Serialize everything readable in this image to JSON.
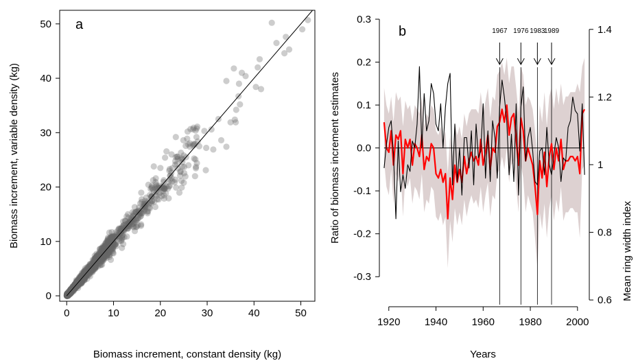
{
  "chart_data": [
    {
      "type": "scatter",
      "panel_label": "a",
      "xlabel": "Biomass increment, constant density (kg)",
      "ylabel": "Biomass increment, variable density (kg)",
      "xlim": [
        -1.5,
        53
      ],
      "ylim": [
        -1,
        52.5
      ],
      "x_ticks": [
        0,
        10,
        20,
        30,
        40,
        50
      ],
      "y_ticks": [
        0,
        10,
        20,
        30,
        40,
        50
      ],
      "x_tick_labels": [
        "0",
        "10",
        "20",
        "30",
        "40",
        "50"
      ],
      "y_tick_labels": [
        "0",
        "10",
        "20",
        "30",
        "40",
        "50"
      ],
      "reference_line": "1:1",
      "point_color": "#666666",
      "points_note": "approx. 1800 semi-transparent points scattered along the 1:1 line; dense 0-10 kg, sparse up to ~52 kg",
      "outlier_points": [
        [
          43.8,
          50.2
        ],
        [
          51.5,
          50.7
        ],
        [
          50.3,
          49.0
        ],
        [
          46.8,
          47.6
        ],
        [
          47.5,
          45.3
        ],
        [
          46.5,
          44.6
        ],
        [
          44.8,
          46.5
        ],
        [
          41.2,
          43.5
        ],
        [
          40.8,
          42.0
        ],
        [
          41.5,
          38.0
        ],
        [
          40.4,
          38.4
        ],
        [
          38.2,
          40.4
        ],
        [
          37.4,
          41.0
        ],
        [
          36.8,
          39.0
        ],
        [
          35.7,
          41.8
        ],
        [
          34.1,
          39.5
        ],
        [
          36.7,
          36.7
        ],
        [
          37.0,
          35.2
        ],
        [
          36.2,
          34.2
        ],
        [
          35.9,
          32.4
        ],
        [
          35.0,
          31.9
        ],
        [
          36.1,
          31.9
        ],
        [
          34.1,
          27.4
        ],
        [
          29.4,
          30.3
        ],
        [
          28.3,
          27.5
        ],
        [
          29.8,
          27.2
        ],
        [
          31.3,
          26.9
        ],
        [
          33.0,
          28.6
        ],
        [
          32.4,
          32.5
        ],
        [
          30.9,
          30.6
        ],
        [
          29.7,
          23.1
        ],
        [
          26.3,
          27.4
        ],
        [
          27.0,
          27.6
        ],
        [
          27.8,
          24.4
        ],
        [
          25.5,
          25.5
        ],
        [
          27.4,
          22.0
        ],
        [
          26.0,
          24.0
        ],
        [
          24.4,
          26.3
        ],
        [
          23.3,
          29.2
        ],
        [
          22.0,
          23.3
        ],
        [
          24.3,
          22.9
        ],
        [
          25.0,
          20.8
        ],
        [
          22.4,
          26.0
        ],
        [
          21.0,
          25.4
        ],
        [
          20.0,
          23.5
        ],
        [
          18.6,
          23.8
        ],
        [
          19.0,
          20.9
        ]
      ]
    },
    {
      "type": "line",
      "panel_label": "b",
      "xlabel": "Years",
      "ylabel": "Ratio of biomass increment estimates",
      "ylabel_right": "Mean ring width index",
      "xlim": [
        1916,
        2005
      ],
      "ylim": [
        -0.37,
        0.3
      ],
      "y2lim": [
        0.58,
        1.43
      ],
      "x_ticks": [
        1920,
        1940,
        1960,
        1980,
        2000
      ],
      "x_tick_labels": [
        "1920",
        "1940",
        "1960",
        "1980",
        "2000"
      ],
      "y_ticks": [
        0.3,
        0.2,
        0.1,
        0.0,
        -0.1,
        -0.2,
        -0.3
      ],
      "y_tick_labels": [
        "0.3",
        "0.2",
        "0.1",
        "0.0",
        "-0.1",
        "-0.2",
        "-0.3"
      ],
      "y2_ticks": [
        1.4,
        1.2,
        1.0,
        0.8,
        0.6
      ],
      "y2_tick_labels": [
        "1.4",
        "1.2",
        "1",
        "0.8",
        "0.6"
      ],
      "zero_line": 0,
      "events": [
        {
          "year": 1967,
          "label": "1967"
        },
        {
          "year": 1976,
          "label": "1976"
        },
        {
          "year": 1983,
          "label": "1983"
        },
        {
          "year": 1989,
          "label": "1989"
        }
      ],
      "colors": {
        "ratio": "#ff0000",
        "band": "#ddd1d1",
        "ring_width": "#000000"
      },
      "x": [
        1918,
        1919,
        1920,
        1921,
        1922,
        1923,
        1924,
        1925,
        1926,
        1927,
        1928,
        1929,
        1930,
        1931,
        1932,
        1933,
        1934,
        1935,
        1936,
        1937,
        1938,
        1939,
        1940,
        1941,
        1942,
        1943,
        1944,
        1945,
        1946,
        1947,
        1948,
        1949,
        1950,
        1951,
        1952,
        1953,
        1954,
        1955,
        1956,
        1957,
        1958,
        1959,
        1960,
        1961,
        1962,
        1963,
        1964,
        1965,
        1966,
        1967,
        1968,
        1969,
        1970,
        1971,
        1972,
        1973,
        1974,
        1975,
        1976,
        1977,
        1978,
        1979,
        1980,
        1981,
        1982,
        1983,
        1984,
        1985,
        1986,
        1987,
        1988,
        1989,
        1990,
        1991,
        1992,
        1993,
        1994,
        1995,
        1996,
        1997,
        1998,
        1999,
        2000,
        2001,
        2002,
        2003
      ],
      "series": [
        {
          "name": "ratio",
          "values": [
            0.06,
            0.0,
            -0.01,
            0.04,
            -0.04,
            0.03,
            0.02,
            0.04,
            -0.06,
            0.02,
            0.0,
            0.02,
            -0.04,
            0.01,
            0.0,
            -0.02,
            0.03,
            -0.05,
            -0.02,
            -0.03,
            0.01,
            0.0,
            -0.06,
            -0.07,
            -0.05,
            -0.08,
            -0.06,
            -0.165,
            -0.07,
            -0.12,
            -0.04,
            -0.08,
            -0.05,
            -0.08,
            -0.02,
            -0.06,
            -0.03,
            -0.01,
            -0.03,
            -0.02,
            -0.04,
            0.02,
            -0.04,
            -0.01,
            0.03,
            -0.05,
            0.0,
            -0.01,
            0.05,
            0.06,
            0.09,
            0.06,
            0.1,
            0.03,
            0.07,
            0.08,
            0.02,
            -0.04,
            0.07,
            0.04,
            -0.03,
            0.0,
            -0.02,
            -0.04,
            -0.09,
            -0.155,
            -0.03,
            -0.07,
            -0.01,
            -0.09,
            -0.02,
            0.01,
            -0.05,
            0.0,
            -0.03,
            0.02,
            -0.05,
            -0.03,
            -0.03,
            -0.02,
            -0.02,
            -0.03,
            -0.02,
            -0.06,
            0.08,
            0.09
          ]
        },
        {
          "name": "upper",
          "values": [
            0.14,
            0.1,
            0.08,
            0.12,
            0.06,
            0.13,
            0.11,
            0.12,
            0.05,
            0.11,
            0.09,
            0.1,
            0.06,
            0.1,
            0.09,
            0.08,
            0.12,
            0.05,
            0.08,
            0.07,
            0.1,
            0.09,
            0.04,
            0.03,
            0.05,
            0.02,
            0.04,
            -0.06,
            0.03,
            -0.02,
            0.06,
            0.03,
            0.05,
            0.02,
            0.08,
            0.05,
            0.08,
            0.09,
            0.09,
            0.09,
            0.08,
            0.13,
            0.08,
            0.11,
            0.14,
            0.07,
            0.12,
            0.11,
            0.17,
            0.18,
            0.2,
            0.17,
            0.21,
            0.15,
            0.19,
            0.19,
            0.14,
            0.08,
            0.19,
            0.17,
            0.1,
            0.12,
            0.11,
            0.09,
            0.04,
            -0.03,
            0.1,
            0.06,
            0.13,
            0.05,
            0.12,
            0.14,
            0.09,
            0.14,
            0.1,
            0.15,
            0.1,
            0.12,
            0.12,
            0.13,
            0.13,
            0.13,
            0.15,
            0.13,
            0.19,
            0.21
          ]
        },
        {
          "name": "lower",
          "values": [
            -0.03,
            -0.09,
            -0.11,
            -0.05,
            -0.13,
            -0.06,
            -0.08,
            -0.05,
            -0.16,
            -0.07,
            -0.09,
            -0.07,
            -0.13,
            -0.09,
            -0.1,
            -0.12,
            -0.06,
            -0.15,
            -0.12,
            -0.13,
            -0.09,
            -0.1,
            -0.16,
            -0.17,
            -0.15,
            -0.18,
            -0.16,
            -0.28,
            -0.17,
            -0.22,
            -0.14,
            -0.18,
            -0.15,
            -0.18,
            -0.12,
            -0.16,
            -0.13,
            -0.11,
            -0.13,
            -0.12,
            -0.14,
            -0.09,
            -0.15,
            -0.11,
            -0.08,
            -0.16,
            -0.11,
            -0.12,
            -0.06,
            -0.05,
            -0.02,
            -0.05,
            0.0,
            -0.08,
            -0.04,
            -0.03,
            -0.09,
            -0.15,
            -0.04,
            -0.07,
            -0.15,
            -0.11,
            -0.13,
            -0.15,
            -0.21,
            -0.28,
            -0.15,
            -0.19,
            -0.13,
            -0.21,
            -0.14,
            -0.11,
            -0.17,
            -0.12,
            -0.15,
            -0.09,
            -0.17,
            -0.15,
            -0.15,
            -0.14,
            -0.14,
            -0.15,
            -0.15,
            -0.21,
            -0.05,
            -0.04
          ]
        },
        {
          "name": "ring width index",
          "axis": "right",
          "values": [
            0.99,
            1.06,
            1.11,
            1.13,
            1.03,
            0.84,
            1.07,
            0.92,
            0.97,
            0.93,
            1.0,
            0.98,
            1.07,
            1.05,
            1.12,
            1.29,
            1.05,
            1.21,
            1.1,
            1.13,
            1.24,
            1.21,
            1.12,
            1.1,
            1.18,
            1.05,
            1.17,
            1.24,
            1.27,
            0.94,
            1.12,
            0.95,
            1.05,
            0.91,
            1.08,
            1.08,
            0.99,
            1.1,
            0.94,
            1.12,
            1.02,
            1.04,
            1.18,
            0.96,
            1.1,
            0.95,
            1.13,
            1.08,
            0.96,
            1.17,
            1.25,
            1.2,
            1.13,
            0.97,
            1.09,
            0.95,
            1.18,
            0.91,
            1.17,
            1.23,
            1.01,
            1.08,
            1.11,
            1.04,
            0.95,
            0.94,
            1.04,
            1.05,
            0.97,
            1.11,
            1.0,
            0.97,
            1.03,
            1.08,
            1.05,
            0.95,
            1.02,
            1.01,
            1.11,
            1.13,
            1.2,
            1.16,
            1.15,
            1.04,
            1.18,
            0.97
          ]
        }
      ]
    }
  ]
}
